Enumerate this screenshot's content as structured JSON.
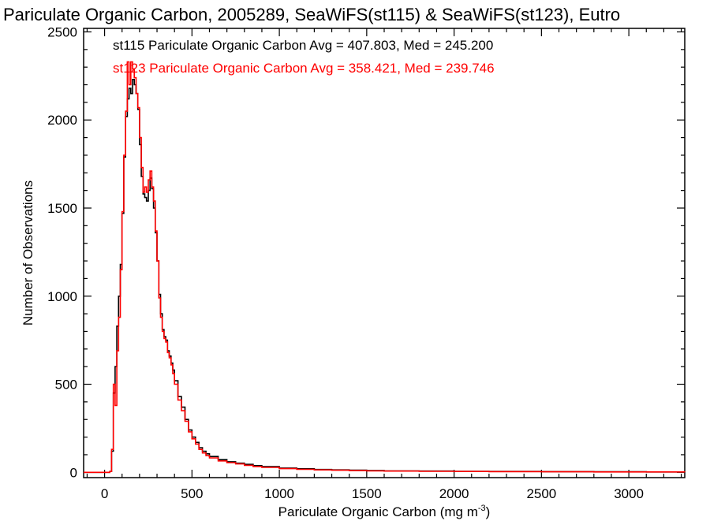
{
  "chart_data": {
    "type": "line",
    "title": "Pariculate Organic Carbon, 2005289, SeaWiFS(st115) & SeaWiFS(st123), Eutro",
    "xlabel": "Pariculate Organic Carbon (mg m",
    "xlabel_sup": "-3",
    "xlabel_close": ")",
    "ylabel": "Number of Observations",
    "xlim": [
      -120,
      3320
    ],
    "ylim": [
      -30,
      2520
    ],
    "xticks": [
      "0",
      "500",
      "1000",
      "1500",
      "2000",
      "2500",
      "3000"
    ],
    "xtick_values": [
      0,
      500,
      1000,
      1500,
      2000,
      2500,
      3000
    ],
    "yticks": [
      "0",
      "500",
      "1000",
      "1500",
      "2000",
      "2500"
    ],
    "ytick_values": [
      0,
      500,
      1000,
      1500,
      2000,
      2500
    ],
    "grid": false,
    "colors": {
      "st115": "#000000",
      "st123": "#ff0000"
    },
    "annotations": [
      {
        "text": "st115 Pariculate Organic Carbon Avg = 407.803, Med = 245.200",
        "color": "#000000"
      },
      {
        "text": "st123 Pariculate Organic Carbon Avg = 358.421, Med = 239.746",
        "color": "#ff0000"
      }
    ],
    "series": [
      {
        "label": "st115",
        "color": "#000000",
        "x": [
          -120,
          0,
          20,
          30,
          40,
          50,
          60,
          70,
          80,
          90,
          100,
          110,
          120,
          130,
          140,
          150,
          160,
          170,
          180,
          190,
          200,
          210,
          220,
          230,
          240,
          250,
          260,
          270,
          280,
          290,
          300,
          310,
          320,
          330,
          340,
          350,
          360,
          370,
          380,
          390,
          400,
          420,
          440,
          460,
          480,
          500,
          520,
          540,
          560,
          580,
          600,
          650,
          700,
          750,
          800,
          850,
          900,
          1000,
          1100,
          1200,
          1300,
          1400,
          1500,
          1600,
          1800,
          2000,
          2200,
          2500,
          2800,
          3100,
          3320
        ],
        "y": [
          0,
          0,
          0,
          5,
          120,
          450,
          600,
          830,
          1000,
          1180,
          1470,
          1790,
          2020,
          2120,
          2180,
          2150,
          2230,
          2200,
          2150,
          2060,
          1860,
          1680,
          1580,
          1560,
          1540,
          1600,
          1670,
          1610,
          1500,
          1360,
          1200,
          1010,
          900,
          810,
          770,
          750,
          690,
          660,
          620,
          580,
          520,
          430,
          370,
          300,
          240,
          200,
          170,
          140,
          120,
          105,
          90,
          72,
          60,
          52,
          45,
          38,
          32,
          24,
          20,
          16,
          14,
          12,
          10,
          8,
          7,
          6,
          5,
          4,
          3,
          2,
          2
        ]
      },
      {
        "label": "st123",
        "color": "#ff0000",
        "x": [
          -120,
          0,
          20,
          30,
          40,
          50,
          60,
          70,
          80,
          90,
          100,
          110,
          120,
          130,
          140,
          150,
          160,
          170,
          180,
          190,
          200,
          210,
          220,
          230,
          240,
          250,
          260,
          270,
          280,
          290,
          300,
          310,
          320,
          330,
          340,
          350,
          360,
          370,
          380,
          390,
          400,
          420,
          440,
          460,
          480,
          500,
          520,
          540,
          560,
          580,
          600,
          650,
          700,
          750,
          800,
          850,
          900,
          1000,
          1100,
          1200,
          1300,
          1400,
          1500,
          1600,
          1800,
          2000,
          2200,
          2500,
          2800,
          3100,
          3320
        ],
        "y": [
          0,
          0,
          0,
          5,
          130,
          500,
          380,
          690,
          880,
          1150,
          1480,
          1800,
          2050,
          2330,
          2200,
          2330,
          2290,
          2240,
          2150,
          2070,
          1900,
          1730,
          1590,
          1620,
          1590,
          1660,
          1710,
          1620,
          1540,
          1370,
          1200,
          990,
          880,
          800,
          760,
          740,
          680,
          650,
          610,
          560,
          500,
          410,
          350,
          290,
          230,
          190,
          160,
          130,
          110,
          95,
          82,
          65,
          55,
          48,
          40,
          33,
          28,
          21,
          17,
          14,
          12,
          10,
          8,
          7,
          6,
          5,
          4,
          3,
          2,
          2,
          1
        ]
      }
    ]
  }
}
